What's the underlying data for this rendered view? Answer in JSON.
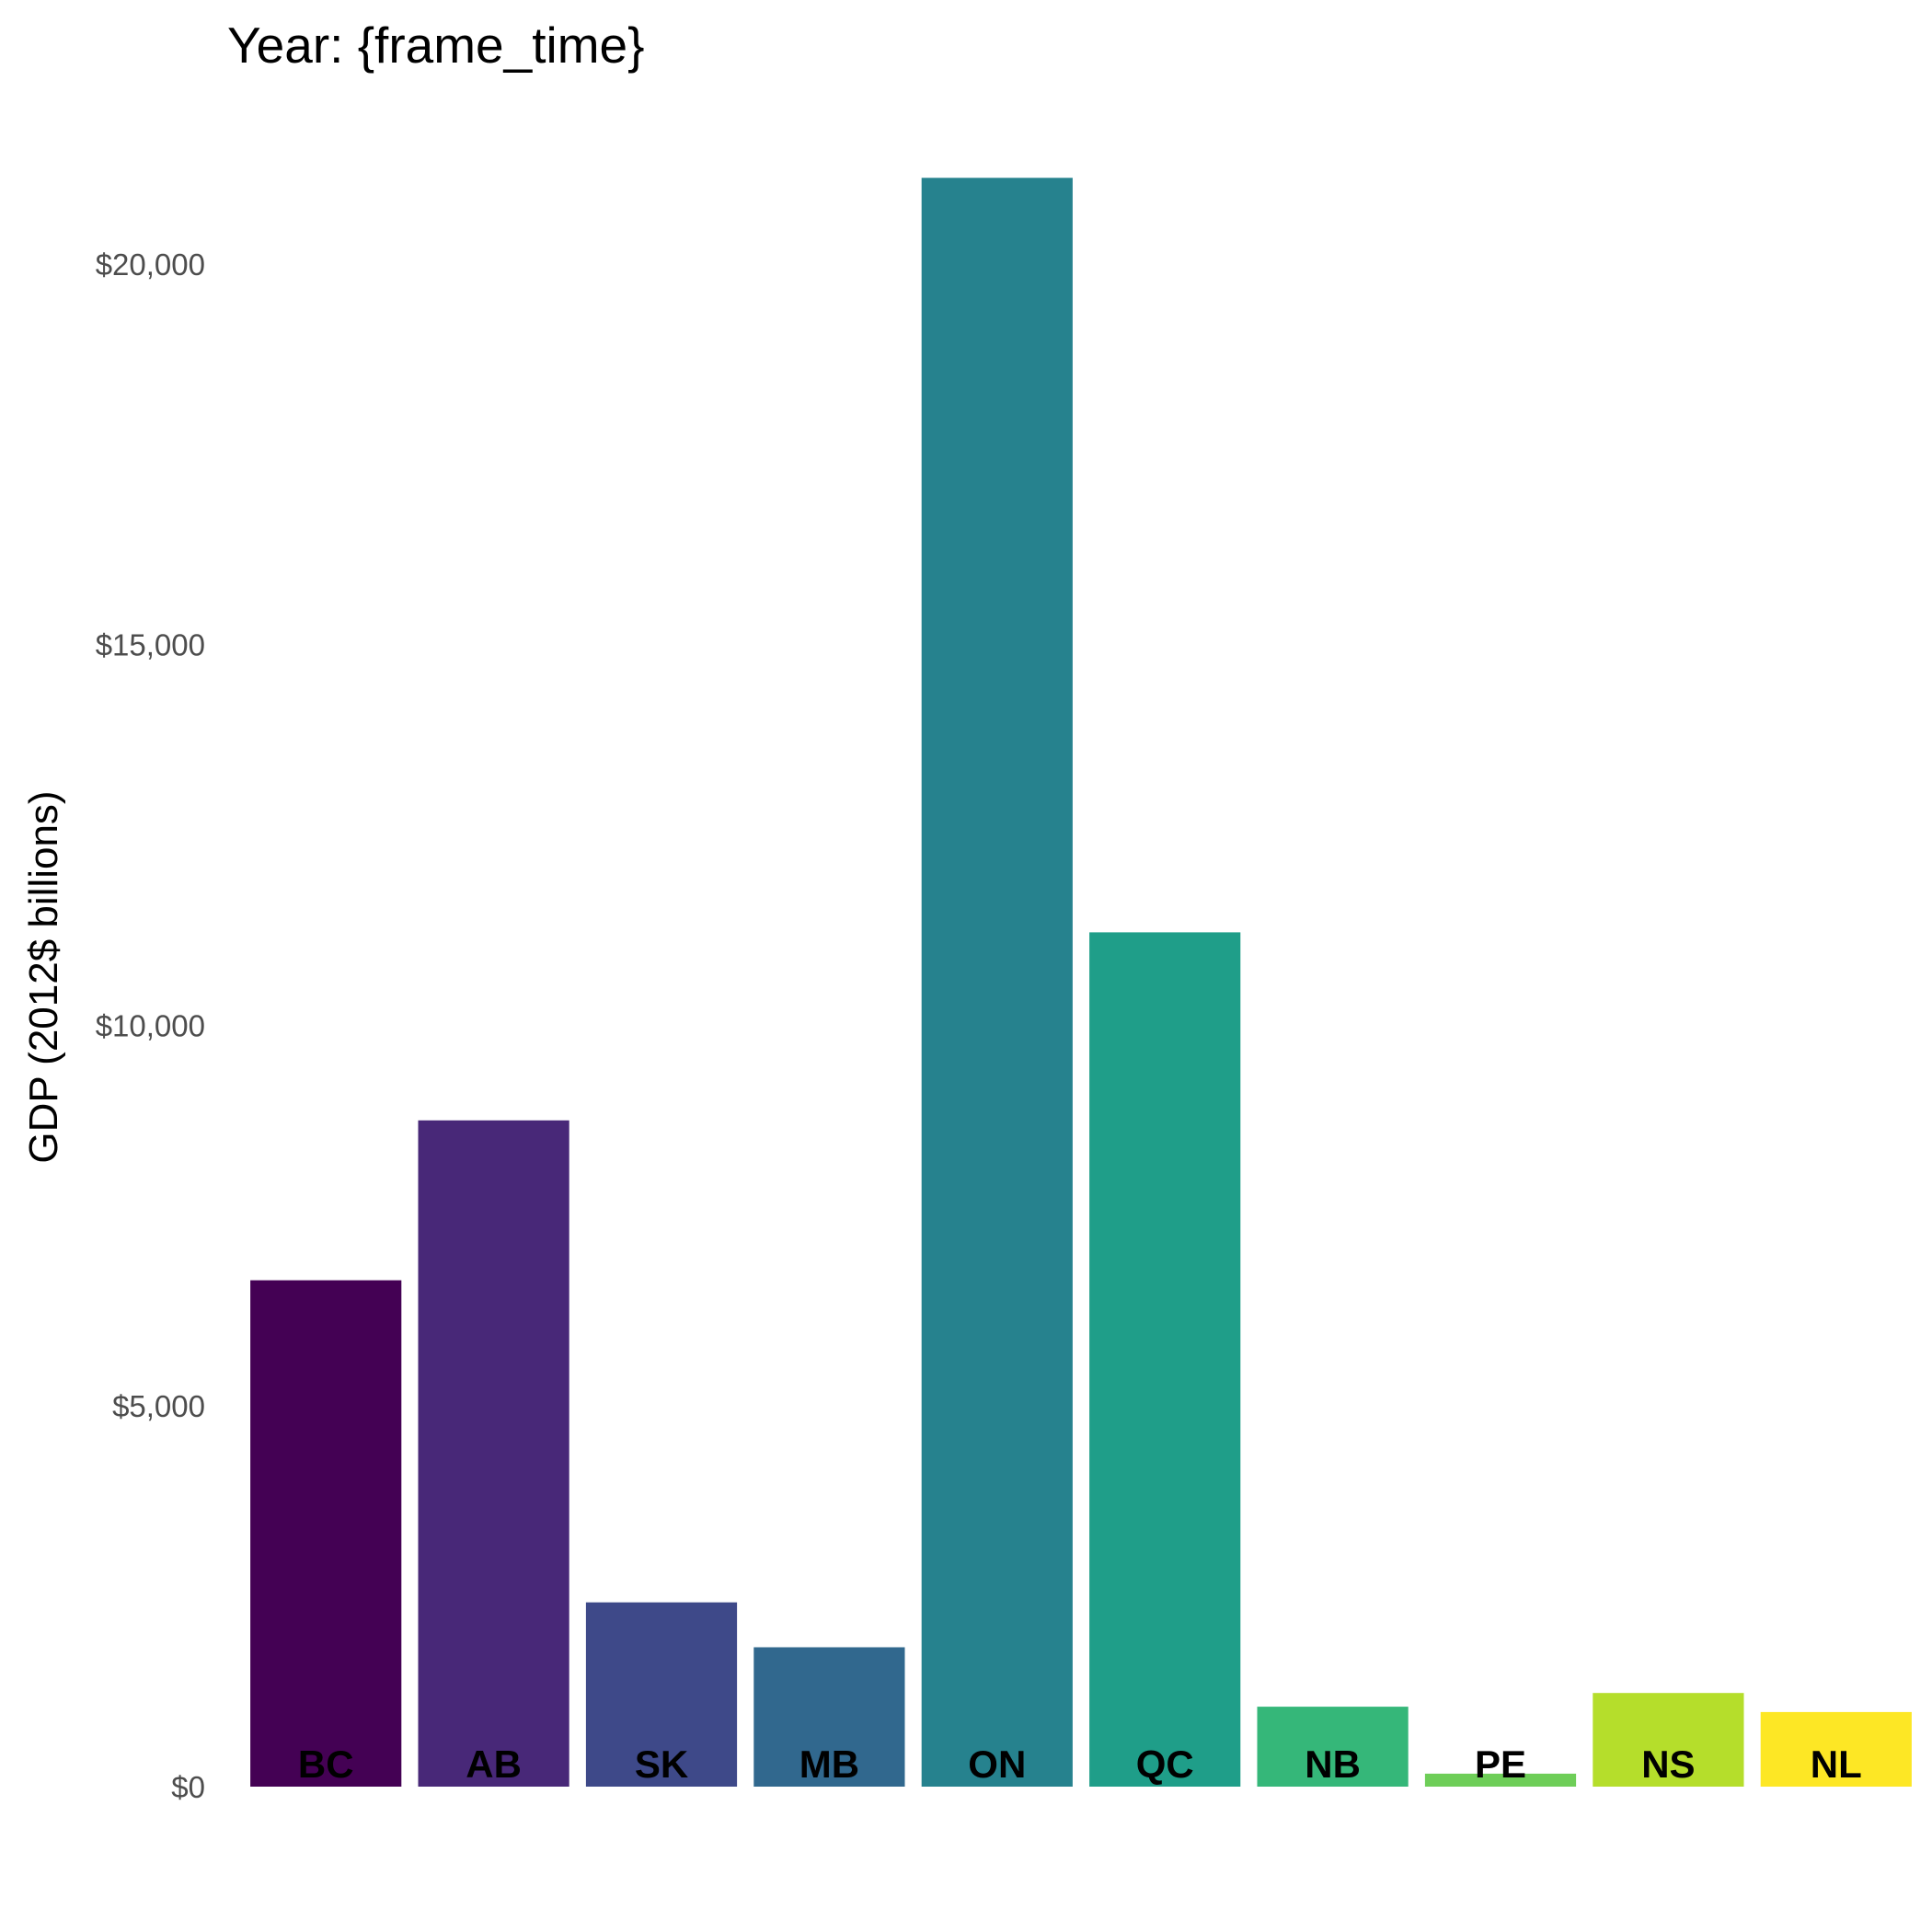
{
  "chart_data": {
    "type": "bar",
    "title": "Year: {frame_time}",
    "xlabel": "",
    "ylabel": "GDP (2012$ billions)",
    "ylim": [
      0,
      21500
    ],
    "grid": false,
    "legend": "none",
    "y_ticks": [
      0,
      5000,
      10000,
      15000,
      20000
    ],
    "y_tick_labels": [
      "$0",
      "$5,000",
      "$10,000",
      "$15,000",
      "$20,000"
    ],
    "categories": [
      "BC",
      "AB",
      "SK",
      "MB",
      "ON",
      "QC",
      "NB",
      "PE",
      "NS",
      "NL"
    ],
    "values": [
      6650,
      8750,
      2420,
      1830,
      21130,
      11220,
      1050,
      170,
      1230,
      980
    ],
    "colors": [
      "#440154",
      "#482878",
      "#3e4989",
      "#31688e",
      "#26828e",
      "#1f9e89",
      "#35b779",
      "#6ece58",
      "#b5de2b",
      "#fde725"
    ]
  }
}
